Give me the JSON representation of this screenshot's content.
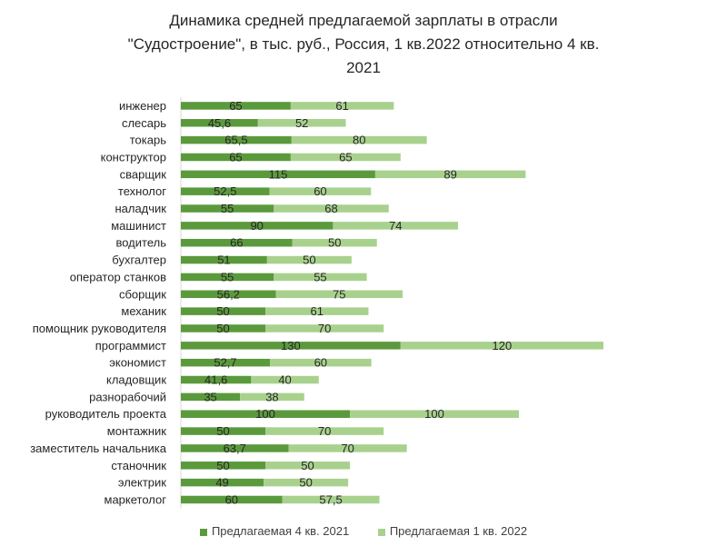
{
  "colors": {
    "series_4q2021": "#5b9a3c",
    "series_1q2022": "#a9d18e",
    "text": "#262626"
  },
  "chart_data": {
    "type": "bar",
    "orientation": "horizontal",
    "stacked": true,
    "title_lines": [
      "Динамика средней предлагаемой зарплаты в отрасли",
      "\"Судостроение\", в тыс. руб., Россия, 1 кв.2022 относительно 4 кв.",
      "2021"
    ],
    "categories": [
      "инженер",
      "слесарь",
      "токарь",
      "конструктор",
      "сварщик",
      "технолог",
      "наладчик",
      "машинист",
      "водитель",
      "бухгалтер",
      "оператор станков",
      "сборщик",
      "механик",
      "помощник руководителя",
      "программист",
      "экономист",
      "кладовщик",
      "разнорабочий",
      "руководитель проекта",
      "монтажник",
      "заместитель начальника",
      "станочник",
      "электрик",
      "маркетолог"
    ],
    "series": [
      {
        "name": "Предлагаемая 4 кв. 2021",
        "values": [
          65,
          45.6,
          65.5,
          65,
          115,
          52.5,
          55,
          90,
          66,
          51,
          55,
          56.2,
          50,
          50,
          130,
          52.7,
          41.6,
          35,
          100,
          50,
          63.7,
          50,
          49,
          60
        ],
        "labels": [
          "65",
          "45,6",
          "65,5",
          "65",
          "115",
          "52,5",
          "55",
          "90",
          "66",
          "51",
          "55",
          "56,2",
          "50",
          "50",
          "130",
          "52,7",
          "41,6",
          "35",
          "100",
          "50",
          "63,7",
          "50",
          "49",
          "60"
        ]
      },
      {
        "name": "Предлагаемая 1 кв. 2022",
        "values": [
          61,
          52,
          80,
          65,
          89,
          60,
          68,
          74,
          50,
          50,
          55,
          75,
          61,
          70,
          120,
          60,
          40,
          38,
          100,
          70,
          70,
          50,
          50,
          57.5
        ],
        "labels": [
          "61",
          "52",
          "80",
          "65",
          "89",
          "60",
          "68",
          "74",
          "50",
          "50",
          "55",
          "75",
          "61",
          "70",
          "120",
          "60",
          "40",
          "38",
          "100",
          "70",
          "70",
          "50",
          "50",
          "57,5"
        ]
      }
    ],
    "grid": false,
    "legend_position": "bottom"
  }
}
